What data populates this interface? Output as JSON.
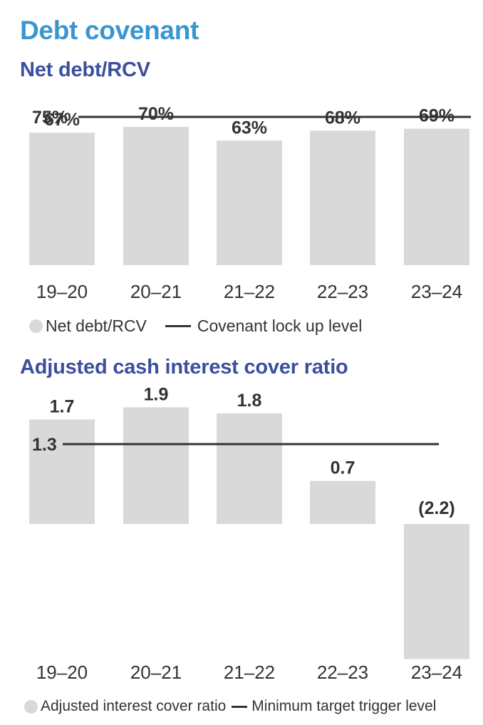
{
  "title": "Debt covenant",
  "chart_data": [
    {
      "type": "bar",
      "title": "Net debt/RCV",
      "categories": [
        "19–20",
        "20–21",
        "21–22",
        "22–23",
        "23–24"
      ],
      "series": [
        {
          "name": "Net debt/RCV",
          "values": [
            67,
            70,
            63,
            68,
            69
          ],
          "labels": [
            "67%",
            "70%",
            "63%",
            "68%",
            "69%"
          ]
        }
      ],
      "reference_line": {
        "name": "Covenant lock up level",
        "value": 75,
        "label": "75%"
      },
      "ylim": [
        0,
        75
      ],
      "bar_color": "#d9d9d9",
      "line_color": "#333333",
      "legend": "bottom-left",
      "grid": false
    },
    {
      "type": "bar",
      "title": "Adjusted cash interest cover ratio",
      "categories": [
        "19–20",
        "20–21",
        "21–22",
        "22–23",
        "23–24"
      ],
      "series": [
        {
          "name": "Adjusted interest cover ratio",
          "values": [
            1.7,
            1.9,
            1.8,
            0.7,
            -2.2
          ],
          "labels": [
            "1.7",
            "1.9",
            "1.8",
            "0.7",
            "(2.2)"
          ]
        }
      ],
      "reference_line": {
        "name": "Minimum target trigger level",
        "value": 1.3,
        "label": "1.3"
      },
      "ylim": [
        -2.2,
        1.9
      ],
      "bar_color": "#d9d9d9",
      "line_color": "#333333",
      "legend": "bottom-left",
      "grid": false
    }
  ],
  "colors": {
    "title": "#3a95d0",
    "subtitle": "#3b4fa0",
    "text": "#333333",
    "bar": "#d9d9d9"
  }
}
